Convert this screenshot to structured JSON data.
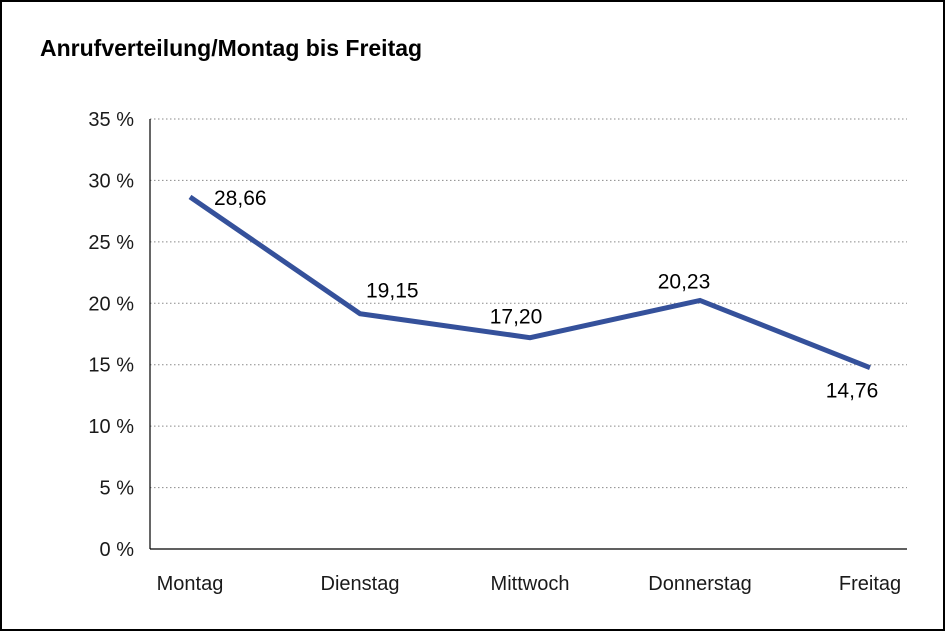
{
  "page": {
    "title": "Anrufverteilung/Montag bis Freitag"
  },
  "chart_data": {
    "type": "line",
    "title": "Anrufverteilung/Montag bis Freitag",
    "categories": [
      "Montag",
      "Dienstag",
      "Mittwoch",
      "Donnerstag",
      "Freitag"
    ],
    "values": [
      28.66,
      19.15,
      17.2,
      20.23,
      14.76
    ],
    "value_labels": [
      "28,66",
      "19,15",
      "17,20",
      "20,23",
      "14,76"
    ],
    "xlabel": "",
    "ylabel": "",
    "ylim": [
      0,
      35
    ],
    "ytick_step": 5,
    "ytick_values": [
      0,
      5,
      10,
      15,
      20,
      25,
      30,
      35
    ],
    "ytick_labels": [
      "0 %",
      "5 %",
      "10 %",
      "15 %",
      "20 %",
      "25 %",
      "30 %",
      "35 %"
    ],
    "grid": "dotted-horizontal",
    "legend": "none",
    "line_color": "#35519b",
    "axis_color": "#000000",
    "grid_color": "#8a8a8a"
  }
}
